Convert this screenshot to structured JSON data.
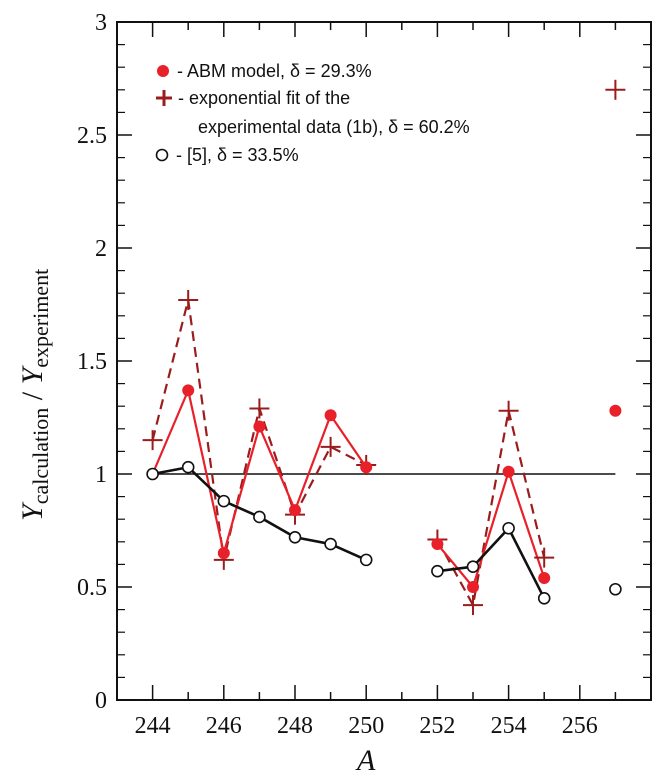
{
  "chart_data": {
    "type": "line",
    "xlabel": "A",
    "ylabel": {
      "numerator_var": "Y",
      "numerator_sub": "calculation",
      "separator": " / ",
      "denominator_var": "Y",
      "denominator_sub": "experiment"
    },
    "xlim": [
      243,
      258
    ],
    "ylim": [
      0,
      3
    ],
    "x_ticks": [
      244,
      246,
      248,
      250,
      252,
      254,
      256
    ],
    "y_ticks": [
      0,
      0.5,
      1,
      1.5,
      2,
      2.5,
      3
    ],
    "y_tick_labels": [
      "0",
      "0.5",
      "1",
      "1.5",
      "2",
      "2.5",
      "3"
    ],
    "reference_line": 1,
    "legend": {
      "placement": "top-left",
      "entries": [
        {
          "series": "abm",
          "line1": "- ABM model, δ = 29.3%",
          "line2": ""
        },
        {
          "series": "exp_fit",
          "line1": "- exponential fit of the",
          "line2": "experimental data (1b), δ = 60.2%"
        },
        {
          "series": "ref5",
          "line1": "- [5],  δ = 33.5%",
          "line2": ""
        }
      ]
    },
    "series": [
      {
        "id": "abm",
        "color": "#e8202a",
        "marker": "filled-circle",
        "line": "solid",
        "segments": [
          {
            "x": [
              244,
              245,
              246,
              247,
              248,
              249,
              250
            ],
            "y": [
              1.0,
              1.37,
              0.65,
              1.21,
              0.84,
              1.26,
              1.03
            ]
          },
          {
            "x": [
              252,
              253,
              254,
              255
            ],
            "y": [
              0.69,
              0.5,
              1.01,
              0.54
            ]
          },
          {
            "x": [
              257
            ],
            "y": [
              1.28
            ]
          }
        ]
      },
      {
        "id": "exp_fit",
        "color": "#9b1c1c",
        "marker": "plus",
        "line": "dashed",
        "segments": [
          {
            "x": [
              244,
              245,
              246,
              247,
              248,
              249,
              250
            ],
            "y": [
              1.15,
              1.77,
              0.62,
              1.29,
              0.82,
              1.12,
              1.04
            ]
          },
          {
            "x": [
              252,
              253,
              254,
              255
            ],
            "y": [
              0.71,
              0.42,
              1.28,
              0.63
            ]
          },
          {
            "x": [
              257
            ],
            "y": [
              2.7
            ]
          }
        ]
      },
      {
        "id": "ref5",
        "color": "#111111",
        "marker": "open-circle",
        "line": "solid",
        "segments": [
          {
            "x": [
              244,
              245,
              246,
              247,
              248,
              249,
              250
            ],
            "y": [
              1.0,
              1.03,
              0.88,
              0.81,
              0.72,
              0.69,
              0.62
            ]
          },
          {
            "x": [
              252,
              253,
              254,
              255
            ],
            "y": [
              0.57,
              0.59,
              0.76,
              0.45
            ]
          },
          {
            "x": [
              257
            ],
            "y": [
              0.49
            ]
          }
        ]
      }
    ]
  }
}
